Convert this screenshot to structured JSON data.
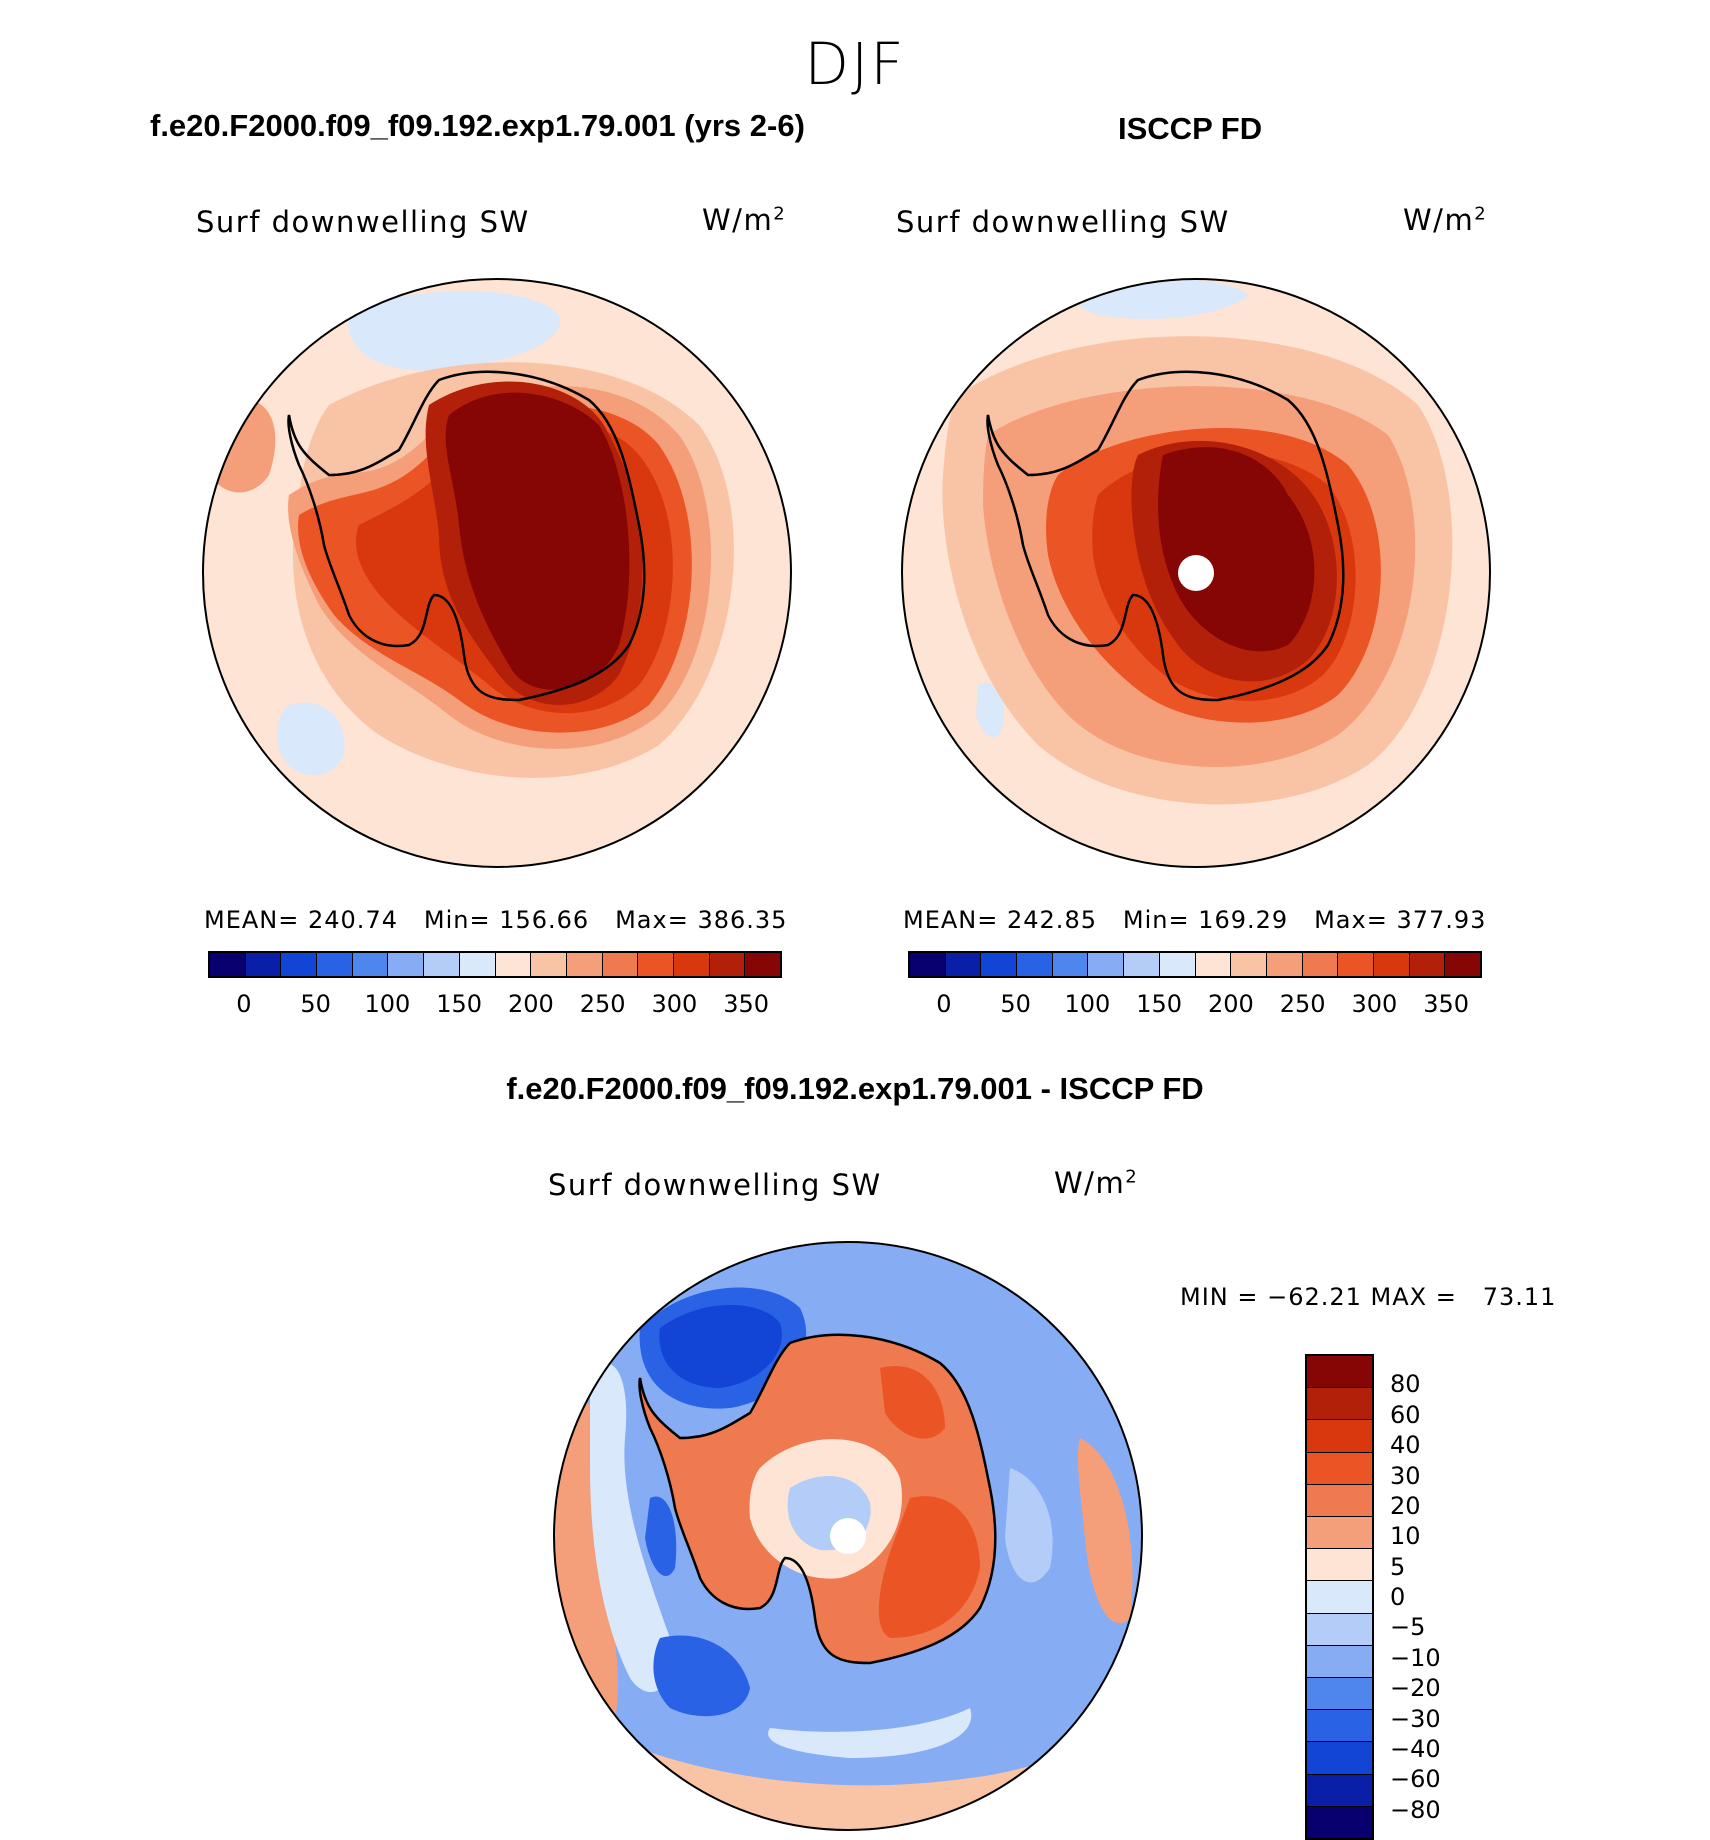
{
  "figure": {
    "season": "DJF",
    "diff_title": "f.e20.F2000.f09_f09.192.exp1.79.001 - ISCCP FD"
  },
  "panels": [
    {
      "title": "f.e20.F2000.f09_f09.192.exp1.79.001 (yrs 2-6)",
      "variable": "Surf downwelling SW",
      "units": "W/m",
      "units_exp": "2",
      "mean_label": "MEAN=",
      "mean": "240.74",
      "min_label": "Min=",
      "min": "156.66",
      "max_label": "Max=",
      "max": "386.35",
      "colorbar_ticks": [
        "0",
        "50",
        "100",
        "150",
        "200",
        "250",
        "300",
        "350"
      ]
    },
    {
      "title": "ISCCP FD",
      "variable": "Surf downwelling SW",
      "units": "W/m",
      "units_exp": "2",
      "mean_label": "MEAN=",
      "mean": "242.85",
      "min_label": "Min=",
      "min": "169.29",
      "max_label": "Max=",
      "max": "377.93",
      "colorbar_ticks": [
        "0",
        "50",
        "100",
        "150",
        "200",
        "250",
        "300",
        "350"
      ]
    }
  ],
  "diff_panel": {
    "variable": "Surf downwelling SW",
    "units": "W/m",
    "units_exp": "2",
    "minmax": "MIN = −62.21 MAX =   73.11",
    "colorbar_ticks": [
      "80",
      "60",
      "40",
      "30",
      "20",
      "10",
      "5",
      "0",
      "−5",
      "−10",
      "−20",
      "−30",
      "−40",
      "−60",
      "−80"
    ]
  },
  "colors": {
    "abs_scale": [
      "#08006e",
      "#0a1fa8",
      "#1245d6",
      "#2a62e6",
      "#4f86ee",
      "#86adf4",
      "#b3cdf8",
      "#d9e8fb",
      "#fde4d4",
      "#f9c3a6",
      "#f59f7a",
      "#f07a4f",
      "#eb5526",
      "#d9380f",
      "#b3200a",
      "#860505"
    ],
    "diff_scale": [
      "#860505",
      "#b3200a",
      "#d9380f",
      "#eb5526",
      "#f07a4f",
      "#f59f7a",
      "#fde4d4",
      "#d9e8fb",
      "#b3cdf8",
      "#86adf4",
      "#4f86ee",
      "#2a62e6",
      "#1245d6",
      "#0a1fa8",
      "#08006e"
    ],
    "land_outline": "#000000"
  },
  "chart_data": [
    {
      "type": "heatmap",
      "projection": "south polar stereographic",
      "title": "f.e20.F2000.f09_f09.192.exp1.79.001 (yrs 2-6)",
      "variable": "Surf downwelling SW",
      "units": "W/m2",
      "mean": 240.74,
      "min": 156.66,
      "max": 386.35,
      "contour_levels": [
        0,
        25,
        50,
        75,
        100,
        125,
        150,
        175,
        200,
        225,
        250,
        275,
        300,
        325,
        350
      ]
    },
    {
      "type": "heatmap",
      "projection": "south polar stereographic",
      "title": "ISCCP FD",
      "variable": "Surf downwelling SW",
      "units": "W/m2",
      "mean": 242.85,
      "min": 169.29,
      "max": 377.93,
      "contour_levels": [
        0,
        25,
        50,
        75,
        100,
        125,
        150,
        175,
        200,
        225,
        250,
        275,
        300,
        325,
        350
      ]
    },
    {
      "type": "heatmap",
      "projection": "south polar stereographic",
      "title": "f.e20.F2000.f09_f09.192.exp1.79.001 - ISCCP FD",
      "variable": "Surf downwelling SW",
      "units": "W/m2",
      "min": -62.21,
      "max": 73.11,
      "contour_levels": [
        -80,
        -60,
        -40,
        -30,
        -20,
        -10,
        -5,
        0,
        5,
        10,
        20,
        30,
        40,
        60,
        80
      ]
    }
  ]
}
